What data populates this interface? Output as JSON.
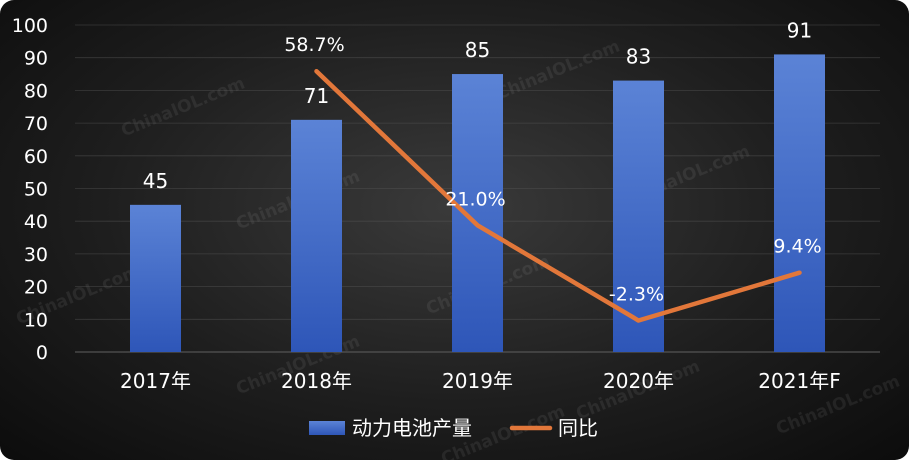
{
  "chart_data": {
    "type": "bar",
    "categories": [
      "2017年",
      "2018年",
      "2019年",
      "2020年",
      "2021年F"
    ],
    "ylim": [
      0,
      100
    ],
    "yticks": [
      0,
      10,
      20,
      30,
      40,
      50,
      60,
      70,
      80,
      90,
      100
    ],
    "grid": true,
    "legend_position": "bottom",
    "series": [
      {
        "name": "动力电池产量",
        "type": "bar",
        "values": [
          45,
          71,
          85,
          83,
          91
        ],
        "data_labels": [
          "45",
          "71",
          "85",
          "83",
          "91"
        ]
      },
      {
        "name": "同比",
        "type": "line",
        "values": [
          null,
          58.7,
          21.0,
          -2.3,
          9.4
        ],
        "data_labels": [
          "",
          "58.7%",
          "21.0%",
          "-2.3%",
          "9.4%"
        ]
      }
    ],
    "colors": {
      "bar_top": "#5b83d6",
      "bar_bottom": "#2e56b8",
      "line": "#e2773a"
    },
    "watermark": "ChinaIOL.com"
  }
}
